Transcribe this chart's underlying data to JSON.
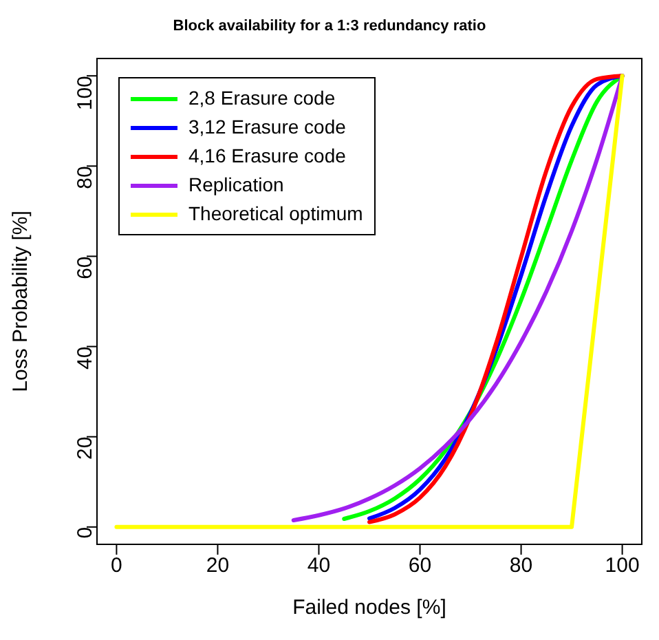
{
  "chart_data": {
    "type": "line",
    "title": "Block availability for a 1:3 redundancy ratio",
    "xlabel": "Failed nodes [%]",
    "ylabel": "Loss Probability [%]",
    "x": [
      35,
      40,
      45,
      50,
      55,
      60,
      65,
      70,
      75,
      80,
      85,
      90,
      95,
      100
    ],
    "series": [
      {
        "name": "2,8 Erasure code",
        "color": "#00ff00",
        "values": [
          null,
          null,
          1.8,
          3.5,
          6.3,
          10.6,
          16.9,
          25.5,
          36.7,
          50.3,
          65.7,
          81.3,
          94.3,
          100
        ]
      },
      {
        "name": "3,12 Erasure code",
        "color": "#0000ff",
        "values": [
          null,
          null,
          null,
          1.9,
          4.2,
          8.3,
          15.1,
          25.3,
          39.1,
          55.8,
          73.6,
          88.9,
          98,
          100
        ]
      },
      {
        "name": "4,16 Erasure code",
        "color": "#ff0000",
        "values": [
          null,
          null,
          null,
          1.1,
          2.8,
          6.5,
          13.4,
          24.6,
          40.5,
          59.8,
          79,
          93.2,
          99.3,
          100
        ]
      },
      {
        "name": "Replication",
        "color": "#a020f0",
        "values": [
          1.5,
          2.6,
          4.1,
          6.3,
          9.2,
          13,
          17.9,
          24,
          31.6,
          41,
          52.2,
          65.6,
          81.5,
          100
        ]
      },
      {
        "name": "Theoretical optimum",
        "color": "#ffff00",
        "x": [
          0,
          90,
          100
        ],
        "values": [
          0,
          0,
          100
        ]
      }
    ],
    "xlim": [
      -4,
      104
    ],
    "ylim": [
      -4,
      104
    ],
    "xticks": [
      0,
      20,
      40,
      60,
      80,
      100
    ],
    "yticks": [
      0,
      20,
      40,
      60,
      80,
      100
    ],
    "legend": "top left",
    "grid": false,
    "marker": "none",
    "line_style": "solid"
  }
}
